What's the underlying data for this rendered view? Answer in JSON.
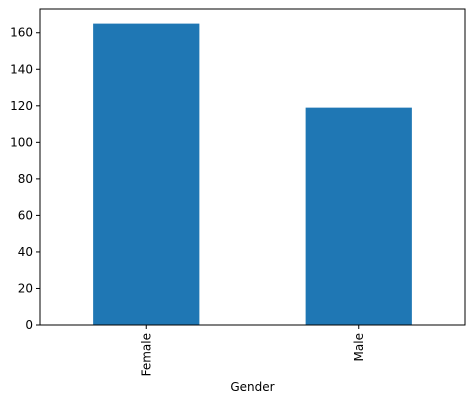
{
  "chart_data": {
    "type": "bar",
    "categories": [
      "Female",
      "Male"
    ],
    "values": [
      165,
      119
    ],
    "title": "",
    "xlabel": "Gender",
    "ylabel": "",
    "ylim": [
      0,
      173
    ],
    "yticks": [
      "0",
      "20",
      "40",
      "60",
      "80",
      "100",
      "120",
      "140",
      "160"
    ],
    "bar_color": "#1f77b4",
    "grid": false,
    "xtick_rotation": "vertical"
  }
}
